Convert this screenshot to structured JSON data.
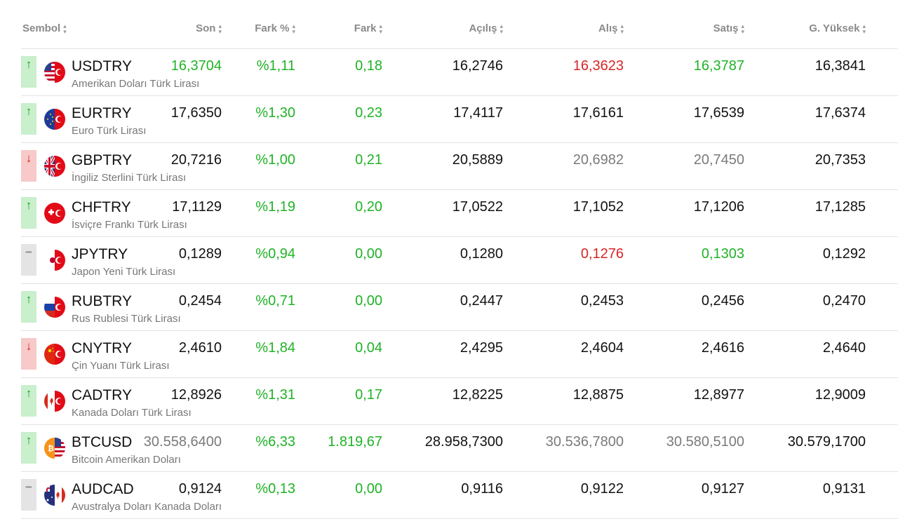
{
  "header": {
    "symbol": "Sembol",
    "last": "Son",
    "change_pct": "Fark %",
    "change": "Fark",
    "open": "Açılış",
    "bid": "Alış",
    "ask": "Satış",
    "high": "G. Yüksek"
  },
  "colors": {
    "up": "#1fb326",
    "down": "#d92525",
    "neutral": "#7a7a7a"
  },
  "rows": [
    {
      "symbol": "USDTRY",
      "desc": "Amerikan Doları Türk Lirası",
      "trend": "up",
      "flag": "us-tr-flag-icon",
      "last": "16,3704",
      "last_color": "green",
      "change_pct": "%1,11",
      "change": "0,18",
      "open": "16,2746",
      "bid": "16,3623",
      "bid_color": "red",
      "ask": "16,3787",
      "ask_color": "green",
      "high": "16,3841"
    },
    {
      "symbol": "EURTRY",
      "desc": "Euro Türk Lirası",
      "trend": "up",
      "flag": "eu-tr-flag-icon",
      "last": "17,6350",
      "last_color": "",
      "change_pct": "%1,30",
      "change": "0,23",
      "open": "17,4117",
      "bid": "17,6161",
      "bid_color": "",
      "ask": "17,6539",
      "ask_color": "",
      "high": "17,6374"
    },
    {
      "symbol": "GBPTRY",
      "desc": "İngiliz Sterlini Türk Lirası",
      "trend": "down",
      "flag": "gb-tr-flag-icon",
      "last": "20,7216",
      "last_color": "",
      "change_pct": "%1,00",
      "change": "0,21",
      "open": "20,5889",
      "bid": "20,6982",
      "bid_color": "gray",
      "ask": "20,7450",
      "ask_color": "gray",
      "high": "20,7353"
    },
    {
      "symbol": "CHFTRY",
      "desc": "İsviçre Frankı Türk Lirası",
      "trend": "up",
      "flag": "ch-tr-flag-icon",
      "last": "17,1129",
      "last_color": "",
      "change_pct": "%1,19",
      "change": "0,20",
      "open": "17,0522",
      "bid": "17,1052",
      "bid_color": "",
      "ask": "17,1206",
      "ask_color": "",
      "high": "17,1285"
    },
    {
      "symbol": "JPYTRY",
      "desc": "Japon Yeni Türk Lirası",
      "trend": "flat",
      "flag": "jp-tr-flag-icon",
      "last": "0,1289",
      "last_color": "",
      "change_pct": "%0,94",
      "change": "0,00",
      "open": "0,1280",
      "bid": "0,1276",
      "bid_color": "red",
      "ask": "0,1303",
      "ask_color": "green",
      "high": "0,1292"
    },
    {
      "symbol": "RUBTRY",
      "desc": "Rus Rublesi Türk Lirası",
      "trend": "up",
      "flag": "ru-tr-flag-icon",
      "last": "0,2454",
      "last_color": "",
      "change_pct": "%0,71",
      "change": "0,00",
      "open": "0,2447",
      "bid": "0,2453",
      "bid_color": "",
      "ask": "0,2456",
      "ask_color": "",
      "high": "0,2470"
    },
    {
      "symbol": "CNYTRY",
      "desc": "Çin Yuanı Türk Lirası",
      "trend": "down",
      "flag": "cn-tr-flag-icon",
      "last": "2,4610",
      "last_color": "",
      "change_pct": "%1,84",
      "change": "0,04",
      "open": "2,4295",
      "bid": "2,4604",
      "bid_color": "",
      "ask": "2,4616",
      "ask_color": "",
      "high": "2,4640"
    },
    {
      "symbol": "CADTRY",
      "desc": "Kanada Doları Türk Lirası",
      "trend": "up",
      "flag": "ca-tr-flag-icon",
      "last": "12,8926",
      "last_color": "",
      "change_pct": "%1,31",
      "change": "0,17",
      "open": "12,8225",
      "bid": "12,8875",
      "bid_color": "",
      "ask": "12,8977",
      "ask_color": "",
      "high": "12,9009"
    },
    {
      "symbol": "BTCUSD",
      "desc": "Bitcoin Amerikan Doları",
      "trend": "up",
      "flag": "btc-us-flag-icon",
      "last": "30.558,6400",
      "last_color": "gray",
      "change_pct": "%6,33",
      "change": "1.819,67",
      "open": "28.958,7300",
      "bid": "30.536,7800",
      "bid_color": "gray",
      "ask": "30.580,5100",
      "ask_color": "gray",
      "high": "30.579,1700"
    },
    {
      "symbol": "AUDCAD",
      "desc": "Avustralya Doları Kanada Doları",
      "trend": "flat",
      "flag": "au-ca-flag-icon",
      "last": "0,9124",
      "last_color": "",
      "change_pct": "%0,13",
      "change": "0,00",
      "open": "0,9116",
      "bid": "0,9122",
      "bid_color": "",
      "ask": "0,9127",
      "ask_color": "",
      "high": "0,9131"
    }
  ]
}
